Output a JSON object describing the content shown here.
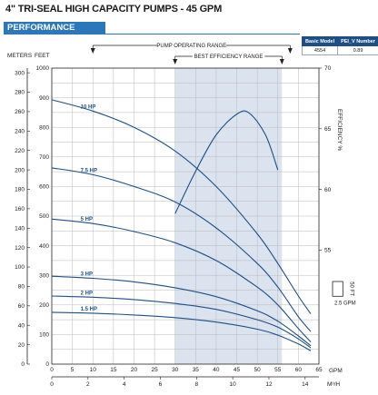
{
  "header": {
    "title": "4\" TRI-SEAL HIGH CAPACITY PUMPS - 45 GPM",
    "section": "PERFORMANCE"
  },
  "model_table": {
    "headers": [
      "Basic Model",
      "PEI_V Number"
    ],
    "rows": [
      [
        "4554",
        "0.89"
      ]
    ]
  },
  "legend_box": {
    "height_label": "50 FT",
    "flow_label": "2.5 GPM"
  },
  "colors": {
    "curve": "#1d4f86",
    "band": "#2c77b9",
    "bep_zone": "#dbe3ef"
  },
  "chart_data": {
    "type": "line",
    "axes": {
      "left_meters": {
        "title": "METERS",
        "ticks": [
          0,
          20,
          40,
          60,
          80,
          100,
          120,
          140,
          160,
          180,
          200,
          220,
          240,
          260,
          280,
          300
        ]
      },
      "left_feet": {
        "title": "FEET",
        "ticks": [
          0,
          100,
          200,
          300,
          400,
          500,
          600,
          700,
          800,
          900,
          1000
        ],
        "ylim": [
          0,
          1000
        ]
      },
      "right_efficiency": {
        "title": "EFFICIENCY %",
        "ticks": [
          55,
          60,
          65,
          70
        ],
        "ylim": [
          45.6,
          70
        ]
      },
      "bottom_gpm": {
        "title": "GPM",
        "ticks": [
          0,
          5,
          10,
          15,
          20,
          25,
          30,
          35,
          40,
          45,
          50,
          55,
          60,
          65
        ],
        "xlim": [
          0,
          65
        ]
      },
      "bottom_m3h": {
        "title": "M³/H",
        "ticks": [
          0,
          2,
          4,
          6,
          8,
          10,
          12,
          14
        ]
      }
    },
    "ranges": {
      "operating": {
        "label": "PUMP OPERATING RANGE",
        "from": 10,
        "to": 58
      },
      "best_efficiency": {
        "label": "BEST EFFICIENCY RANGE",
        "from": 30,
        "to": 56
      }
    },
    "series": [
      {
        "name": "10 HP",
        "x": [
          0,
          10,
          20,
          30,
          40,
          50,
          55,
          60,
          63
        ],
        "values": [
          893,
          855,
          800,
          720,
          600,
          440,
          340,
          230,
          170
        ]
      },
      {
        "name": "7.5 HP",
        "x": [
          0,
          10,
          20,
          30,
          40,
          50,
          55,
          60,
          63
        ],
        "values": [
          663,
          640,
          600,
          548,
          460,
          340,
          260,
          160,
          110
        ]
      },
      {
        "name": "5 HP",
        "x": [
          0,
          10,
          20,
          30,
          40,
          50,
          55,
          60,
          63
        ],
        "values": [
          490,
          475,
          448,
          410,
          350,
          260,
          200,
          120,
          75
        ]
      },
      {
        "name": "3 HP",
        "x": [
          0,
          10,
          20,
          30,
          40,
          50,
          55,
          60,
          63
        ],
        "values": [
          297,
          290,
          278,
          258,
          228,
          180,
          145,
          95,
          62
        ]
      },
      {
        "name": "2 HP",
        "x": [
          0,
          10,
          20,
          30,
          40,
          50,
          55,
          60,
          63
        ],
        "values": [
          230,
          226,
          218,
          205,
          185,
          150,
          125,
          85,
          55
        ]
      },
      {
        "name": "1.5 HP",
        "x": [
          0,
          10,
          20,
          30,
          40,
          50,
          55,
          60,
          63
        ],
        "values": [
          175,
          172,
          166,
          157,
          142,
          118,
          98,
          68,
          45
        ]
      },
      {
        "name": "EFFICIENCY %",
        "axis": "right_efficiency",
        "x": [
          30,
          35,
          40,
          45,
          48,
          52,
          55
        ],
        "values": [
          58.0,
          61.5,
          64.5,
          66.2,
          66.3,
          64.5,
          61.6
        ]
      }
    ]
  }
}
